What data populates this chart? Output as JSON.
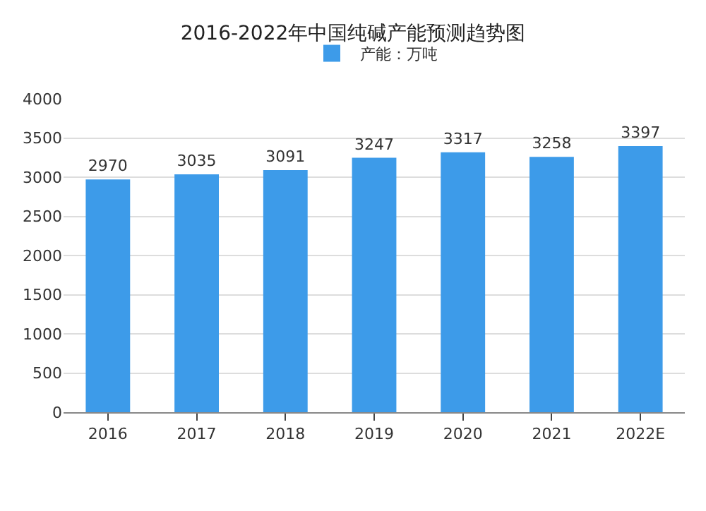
{
  "chart_data": {
    "type": "bar",
    "title": "2016-2022年中国纯碱产能预测趋势图",
    "categories": [
      "2016",
      "2017",
      "2018",
      "2019",
      "2020",
      "2021",
      "2022E"
    ],
    "series": [
      {
        "name": "产能：万吨",
        "color": "#3d9be9",
        "values": [
          2970,
          3035,
          3091,
          3247,
          3317,
          3258,
          3397
        ]
      }
    ],
    "ylim": [
      0,
      4000
    ],
    "yticks": [
      0,
      500,
      1000,
      1500,
      2000,
      2500,
      3000,
      3500,
      4000
    ],
    "grid": "y",
    "legend": "top",
    "data_labels": true
  }
}
